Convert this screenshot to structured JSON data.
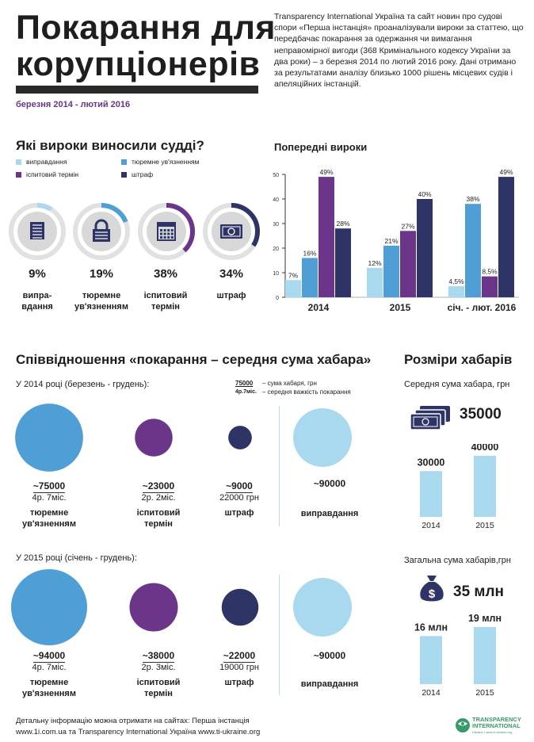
{
  "header": {
    "title_line1": "Покарання для",
    "title_line2": "корупціонерів",
    "period": "березня  2014 - лютий 2016",
    "intro": "Transparency International Україна та сайт новин про судові спори «Перша інстанція» проаналізували вироки за статтею, що передбачає покарання за одержання чи вимагання неправомірної вигоди (368 Кримінального кодексу України за два роки) – з березня 2014 по лютий 2016 року. Дані отримано за результатами аналізу близько 1000 рішень місцевих судів і апеляційних інстанцій."
  },
  "colors": {
    "light_blue": "#a9d9ee",
    "mid_blue": "#4f9fd6",
    "purple": "#6b3589",
    "navy": "#2e3566",
    "ring_bg": "#e1e1e1",
    "icon_bg": "#d8d8d8"
  },
  "verdicts": {
    "heading": "Які вироки виносили судді?",
    "legend": [
      {
        "label": "виправдання",
        "color": "#a9d9ee"
      },
      {
        "label": "тюремне ув'язненням",
        "color": "#4f9fd6"
      },
      {
        "label": "іспитовий термін",
        "color": "#6b3589"
      },
      {
        "label": "штраф",
        "color": "#2e3566"
      }
    ],
    "items": [
      {
        "pct_label": "9%",
        "fraction": 0.09,
        "color": "#a9d9ee",
        "icon": "document-icon",
        "caption1": "випра-",
        "caption2": "вдання"
      },
      {
        "pct_label": "19%",
        "fraction": 0.19,
        "color": "#4f9fd6",
        "icon": "lock-icon",
        "caption1": "тюремне",
        "caption2": "ув'язненням"
      },
      {
        "pct_label": "38%",
        "fraction": 0.38,
        "color": "#6b3589",
        "icon": "calendar-icon",
        "caption1": "іспитовий",
        "caption2": "термін"
      },
      {
        "pct_label": "34%",
        "fraction": 0.34,
        "color": "#2e3566",
        "icon": "banknote-icon",
        "caption1": "штраф",
        "caption2": ""
      }
    ]
  },
  "chart_data": {
    "type": "bar",
    "title": "Попередні вироки",
    "categories": [
      "2014",
      "2015",
      "січ. - лют. 2016"
    ],
    "ylim": [
      0,
      50
    ],
    "yticks": [
      0,
      10,
      20,
      30,
      40,
      50
    ],
    "series": [
      {
        "name": "виправдання",
        "color": "#a9d9ee",
        "values": [
          7,
          12,
          4.5
        ],
        "labels": [
          "7%",
          "12%",
          "4,5%"
        ]
      },
      {
        "name": "тюремне ув'язненням",
        "color": "#4f9fd6",
        "values": [
          16,
          21,
          38
        ],
        "labels": [
          "16%",
          "21%",
          "38%"
        ]
      },
      {
        "name": "іспитовий термін",
        "color": "#6b3589",
        "values": [
          49,
          27,
          8.5
        ],
        "labels": [
          "49%",
          "27%",
          "8,5%"
        ]
      },
      {
        "name": "штраф",
        "color": "#2e3566",
        "values": [
          28,
          40,
          49
        ],
        "labels": [
          "28%",
          "40%",
          "49%"
        ]
      }
    ]
  },
  "ratio": {
    "heading": "Співвідношення «покарання – середня сума хабара»",
    "key_top": "75000",
    "key_bot": "4р.7міс.",
    "key_top_desc": "– сума хабаря, грн",
    "key_bot_desc": "– середня важкість покарання",
    "groups": [
      {
        "title": "У 2014 році (березень - грудень):",
        "items": [
          {
            "amount": "~75000",
            "term": "4р. 7міс.",
            "label1": "тюремне",
            "label2": "ув'язненням",
            "color": "#4f9fd6",
            "size": 75000
          },
          {
            "amount": "~23000",
            "term": "2р. 2міс.",
            "label1": "іспитовий",
            "label2": "термін",
            "color": "#6b3589",
            "size": 23000
          },
          {
            "amount": "~9000",
            "term": "22000 грн",
            "label1": "штраф",
            "label2": "",
            "color": "#2e3566",
            "size": 9000
          },
          {
            "amount": "~90000",
            "term": "",
            "label1": "виправдання",
            "label2": "",
            "color": "#a9d9ee",
            "size": 90000
          }
        ]
      },
      {
        "title": "У 2015 році (січень - грудень):",
        "items": [
          {
            "amount": "~94000",
            "term": "4р. 7міс.",
            "label1": "тюремне",
            "label2": "ув'язненням",
            "color": "#4f9fd6",
            "size": 94000
          },
          {
            "amount": "~38000",
            "term": "2р. 3міс.",
            "label1": "іспитовий",
            "label2": "термін",
            "color": "#6b3589",
            "size": 38000
          },
          {
            "amount": "~22000",
            "term": "19000 грн",
            "label1": "штраф",
            "label2": "",
            "color": "#2e3566",
            "size": 22000
          },
          {
            "amount": "~90000",
            "term": "",
            "label1": "виправдання",
            "label2": "",
            "color": "#a9d9ee",
            "size": 90000
          }
        ]
      }
    ]
  },
  "bribes": {
    "heading": "Розміри хабарів",
    "avg_title": "Середня сума хабара, грн",
    "avg_total": "35000",
    "avg_bars": [
      {
        "year": "2014",
        "value": 30000,
        "label": "30000"
      },
      {
        "year": "2015",
        "value": 40000,
        "label": "40000"
      }
    ],
    "sum_title": "Загальна сума хабарів,грн",
    "sum_total": "35 млн",
    "sum_bars": [
      {
        "year": "2014",
        "value": 16,
        "label": "16 млн"
      },
      {
        "year": "2015",
        "value": 19,
        "label": "19 млн"
      }
    ]
  },
  "footer": {
    "line1": "Детальну інформацію можна отримати на сайтах: Перша інстанція",
    "line2": "www.1i.com.ua  та Transparency International Україна www.ti-ukraine.org",
    "logo_line1": "TRANSPARENCY",
    "logo_line2": "INTERNATIONAL",
    "logo_line3": "Ukraine  •  www.ti-ukraine.org"
  }
}
